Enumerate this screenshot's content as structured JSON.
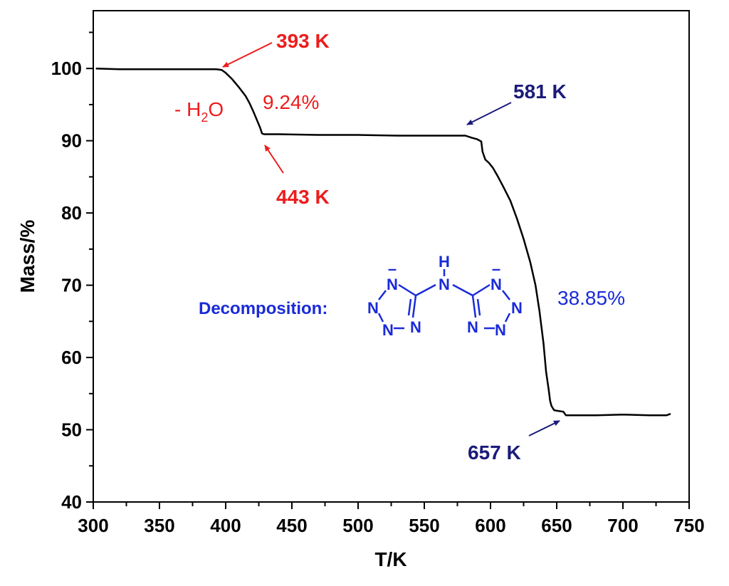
{
  "chart_data": {
    "type": "line",
    "xlabel": "T/K",
    "ylabel": "Mass/%",
    "xlim": [
      300,
      750
    ],
    "ylim": [
      40,
      108
    ],
    "xticks": [
      300,
      350,
      400,
      450,
      500,
      550,
      600,
      650,
      700,
      750
    ],
    "yticks": [
      40,
      50,
      60,
      70,
      80,
      90,
      100
    ],
    "grid": false,
    "series": [
      {
        "name": "TG curve",
        "color": "#000000",
        "x": [
          302,
          320,
          350,
          380,
          393,
          397,
          400,
          405,
          410,
          415,
          418,
          421,
          424,
          426,
          427.5,
          429,
          440,
          470,
          500,
          530,
          560,
          581,
          586,
          590,
          593,
          594,
          596,
          599,
          602,
          606,
          610,
          615,
          620,
          625,
          630,
          634,
          637,
          640,
          642,
          644,
          645,
          646,
          648,
          651,
          655,
          657,
          665,
          680,
          700,
          720,
          733,
          736
        ],
        "y": [
          100,
          99.9,
          99.9,
          99.9,
          99.9,
          99.8,
          99.4,
          98.5,
          97.4,
          96.2,
          95.2,
          94.0,
          92.7,
          91.8,
          91.0,
          90.9,
          90.9,
          90.8,
          90.8,
          90.7,
          90.7,
          90.7,
          90.4,
          90.2,
          89.9,
          88.5,
          87.4,
          86.9,
          86.2,
          84.9,
          83.5,
          81.7,
          79.2,
          76.4,
          73.2,
          70.0,
          66.4,
          62.0,
          58.0,
          55.5,
          54.0,
          53.3,
          52.7,
          52.6,
          52.5,
          52.0,
          52.0,
          52.0,
          52.1,
          52.0,
          52.0,
          52.2
        ]
      }
    ],
    "annotations": {
      "onset1": {
        "label": "393 K",
        "x": 393,
        "y": 99.9,
        "color": "#ee1c1c"
      },
      "end1": {
        "label": "443 K",
        "x": 428,
        "y": 90.9,
        "color": "#ee1c1c"
      },
      "step1_loss": "9.24%",
      "step1_species": "- H",
      "step1_species_sub": "2",
      "step1_species_tail": "O",
      "onset2": {
        "label": "581 K",
        "x": 581,
        "y": 90.7,
        "color": "#1b1b7a"
      },
      "end2": {
        "label": "657 K",
        "x": 652,
        "y": 52.6,
        "color": "#1b1b7a"
      },
      "step2_loss": "38.85%",
      "decomposition_label": "Decomposition:"
    },
    "molecule": {
      "atom_n": "N",
      "atom_h": "H",
      "charge_bar": "–"
    }
  }
}
